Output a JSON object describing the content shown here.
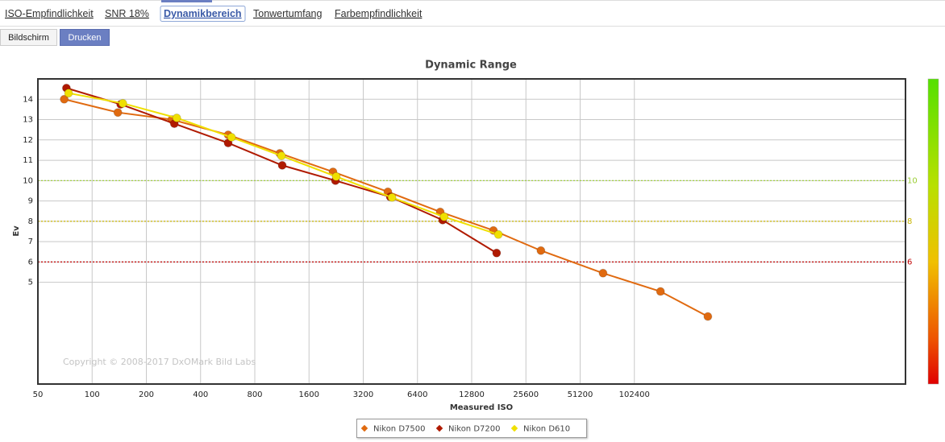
{
  "tabs": [
    {
      "label": "ISO-Empfindlichkeit",
      "selected": false
    },
    {
      "label": "SNR 18%",
      "selected": false
    },
    {
      "label": "Dynamikbereich",
      "selected": true
    },
    {
      "label": "Tonwertumfang",
      "selected": false
    },
    {
      "label": "Farbempfindlichkeit",
      "selected": false
    }
  ],
  "view_buttons": [
    {
      "label": "Bildschirm",
      "selected": false
    },
    {
      "label": "Drucken",
      "selected": true
    }
  ],
  "chart_data": {
    "type": "line",
    "title": "Dynamic Range",
    "x_label": "Measured ISO",
    "y_label": "Ev",
    "watermark": "Copyright © 2008-2017 DxOMark Bild Labs",
    "x_log_scale": true,
    "xlim": [
      50,
      3276800
    ],
    "xticks": [
      50,
      100,
      200,
      400,
      800,
      1600,
      3200,
      6400,
      12800,
      25600,
      51200,
      102400
    ],
    "ylim": [
      0,
      15
    ],
    "yticks": [
      5,
      6,
      7,
      8,
      9,
      10,
      11,
      12,
      13,
      14
    ],
    "grid": true,
    "legend": "bottom",
    "reference_lines": [
      {
        "value": 10,
        "color": "#9acd32"
      },
      {
        "value": 8,
        "color": "#c8b400"
      },
      {
        "value": 6,
        "color": "#c00000"
      }
    ],
    "series": [
      {
        "name": "Nikon D7500",
        "color": "#e06a10",
        "x": [
          70,
          139,
          277,
          569,
          1101,
          2174,
          4384,
          8560,
          16900,
          31000,
          68600,
          143000,
          262000
        ],
        "values": [
          14.0,
          13.35,
          13.0,
          12.25,
          11.34,
          10.43,
          9.45,
          8.46,
          7.55,
          6.56,
          5.45,
          4.55,
          3.32
        ]
      },
      {
        "name": "Nikon D7200",
        "color": "#b01a00",
        "x": [
          72,
          144,
          286,
          569,
          1136,
          2243,
          4520,
          8830,
          17600
        ],
        "values": [
          14.55,
          13.75,
          12.8,
          11.85,
          10.75,
          10.0,
          9.2,
          8.06,
          6.44
        ]
      },
      {
        "name": "Nikon D610",
        "color": "#f0e000",
        "x": [
          74,
          148,
          295,
          594,
          1125,
          2265,
          4620,
          9000,
          18000
        ],
        "values": [
          14.3,
          13.8,
          13.08,
          12.13,
          11.22,
          10.2,
          9.17,
          8.22,
          7.35
        ]
      }
    ]
  }
}
